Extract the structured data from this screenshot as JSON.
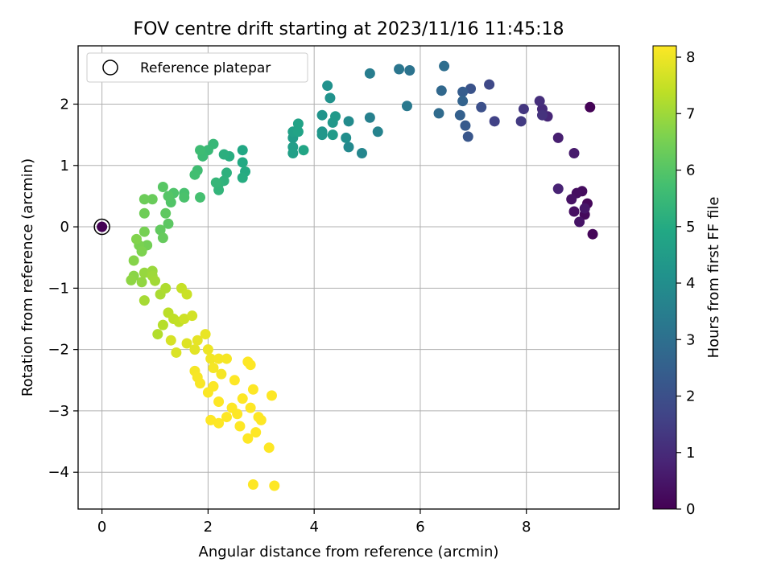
{
  "chart_data": {
    "type": "scatter",
    "title": "FOV centre drift starting at 2023/11/16 11:45:18",
    "xlabel": "Angular distance from reference (arcmin)",
    "ylabel": "Rotation from reference (arcmin)",
    "xlim": [
      -0.45,
      9.75
    ],
    "ylim": [
      -4.6,
      2.95
    ],
    "xticks": [
      0,
      2,
      4,
      6,
      8
    ],
    "yticks": [
      -4,
      -3,
      -2,
      -1,
      0,
      1,
      2
    ],
    "x_tick_labels": [
      "0",
      "2",
      "4",
      "6",
      "8"
    ],
    "y_tick_labels": [
      "−4",
      "−3",
      "−2",
      "−1",
      "0",
      "1",
      "2"
    ],
    "grid": true,
    "legend": {
      "position": "upper-left",
      "label": "Reference platepar"
    },
    "reference_point": {
      "x": 0,
      "y": 0
    },
    "colorbar": {
      "label": "Hours from first FF file",
      "colormap": "viridis",
      "min": 0,
      "max": 8.2,
      "ticks": [
        0,
        1,
        2,
        3,
        4,
        5,
        6,
        7,
        8
      ],
      "tick_labels": [
        "0",
        "1",
        "2",
        "3",
        "4",
        "5",
        "6",
        "7",
        "8"
      ]
    },
    "series": [
      {
        "points": [
          [
            0.0,
            0.0,
            0.0
          ],
          [
            9.2,
            1.95,
            0.05
          ],
          [
            9.25,
            -0.12,
            0.1
          ],
          [
            9.15,
            0.38,
            0.15
          ],
          [
            9.1,
            0.2,
            0.2
          ],
          [
            9.05,
            0.58,
            0.25
          ],
          [
            8.95,
            0.55,
            0.3
          ],
          [
            8.9,
            0.25,
            0.35
          ],
          [
            8.85,
            0.45,
            0.4
          ],
          [
            9.0,
            0.08,
            0.45
          ],
          [
            9.1,
            0.3,
            0.5
          ],
          [
            8.9,
            1.2,
            0.6
          ],
          [
            8.6,
            1.45,
            0.7
          ],
          [
            8.6,
            0.62,
            0.8
          ],
          [
            8.4,
            1.8,
            0.9
          ],
          [
            8.3,
            1.92,
            1.0
          ],
          [
            8.25,
            2.05,
            1.1
          ],
          [
            8.3,
            1.82,
            1.2
          ],
          [
            7.95,
            1.92,
            1.3
          ],
          [
            7.9,
            1.72,
            1.4
          ],
          [
            7.4,
            1.72,
            1.6
          ],
          [
            7.3,
            2.32,
            1.8
          ],
          [
            7.15,
            1.95,
            2.0
          ],
          [
            6.95,
            2.25,
            2.1
          ],
          [
            6.9,
            1.47,
            2.2
          ],
          [
            6.85,
            1.65,
            2.3
          ],
          [
            6.8,
            2.2,
            2.4
          ],
          [
            6.75,
            1.82,
            2.5
          ],
          [
            6.8,
            2.05,
            2.6
          ],
          [
            6.4,
            2.22,
            2.75
          ],
          [
            6.35,
            1.85,
            2.85
          ],
          [
            6.45,
            2.62,
            2.95
          ],
          [
            5.8,
            2.55,
            3.1
          ],
          [
            5.6,
            2.57,
            3.2
          ],
          [
            5.75,
            1.97,
            3.3
          ],
          [
            5.05,
            2.5,
            3.45
          ],
          [
            5.05,
            1.78,
            3.55
          ],
          [
            5.2,
            1.55,
            3.65
          ],
          [
            4.9,
            1.2,
            3.75
          ],
          [
            4.65,
            1.3,
            3.85
          ],
          [
            4.65,
            1.72,
            3.9
          ],
          [
            4.6,
            1.45,
            4.0
          ],
          [
            4.25,
            2.3,
            4.1
          ],
          [
            4.3,
            2.1,
            4.15
          ],
          [
            4.15,
            1.82,
            4.2
          ],
          [
            4.15,
            1.55,
            4.25
          ],
          [
            4.15,
            1.5,
            4.3
          ],
          [
            4.35,
            1.7,
            4.35
          ],
          [
            4.4,
            1.8,
            4.4
          ],
          [
            4.35,
            1.5,
            4.45
          ],
          [
            3.6,
            1.45,
            4.5
          ],
          [
            3.6,
            1.3,
            4.55
          ],
          [
            3.6,
            1.2,
            4.6
          ],
          [
            3.6,
            1.55,
            4.65
          ],
          [
            3.7,
            1.68,
            4.7
          ],
          [
            3.7,
            1.55,
            4.75
          ],
          [
            3.8,
            1.25,
            4.8
          ],
          [
            2.65,
            1.25,
            4.9
          ],
          [
            2.65,
            1.05,
            4.95
          ],
          [
            2.7,
            0.9,
            5.0
          ],
          [
            2.65,
            0.8,
            5.05
          ],
          [
            2.4,
            1.15,
            5.1
          ],
          [
            2.3,
            1.18,
            5.15
          ],
          [
            2.35,
            0.88,
            5.2
          ],
          [
            2.3,
            0.75,
            5.25
          ],
          [
            2.2,
            0.7,
            5.3
          ],
          [
            2.2,
            0.6,
            5.35
          ],
          [
            2.15,
            0.72,
            5.4
          ],
          [
            2.1,
            1.35,
            5.45
          ],
          [
            2.0,
            1.25,
            5.5
          ],
          [
            1.9,
            1.15,
            5.55
          ],
          [
            1.85,
            1.25,
            5.6
          ],
          [
            1.8,
            0.92,
            5.65
          ],
          [
            1.75,
            0.85,
            5.7
          ],
          [
            1.85,
            0.48,
            5.75
          ],
          [
            1.55,
            0.55,
            5.8
          ],
          [
            1.55,
            0.48,
            5.85
          ],
          [
            1.35,
            0.55,
            5.9
          ],
          [
            1.3,
            0.4,
            5.95
          ],
          [
            1.25,
            0.5,
            6.0
          ],
          [
            1.15,
            0.65,
            6.05
          ],
          [
            1.25,
            0.05,
            6.1
          ],
          [
            1.2,
            0.22,
            6.15
          ],
          [
            1.1,
            -0.05,
            6.2
          ],
          [
            1.15,
            -0.18,
            6.25
          ],
          [
            0.95,
            0.45,
            6.3
          ],
          [
            0.8,
            0.45,
            6.35
          ],
          [
            0.8,
            0.22,
            6.4
          ],
          [
            0.85,
            -0.3,
            6.45
          ],
          [
            0.8,
            -0.08,
            6.5
          ],
          [
            0.7,
            -0.3,
            6.55
          ],
          [
            0.75,
            -0.4,
            6.6
          ],
          [
            0.65,
            -0.2,
            6.65
          ],
          [
            0.6,
            -0.55,
            6.7
          ],
          [
            0.6,
            -0.8,
            6.75
          ],
          [
            0.55,
            -0.87,
            6.8
          ],
          [
            0.75,
            -0.9,
            6.85
          ],
          [
            0.8,
            -0.75,
            6.9
          ],
          [
            0.95,
            -0.72,
            6.95
          ],
          [
            0.95,
            -0.8,
            7.0
          ],
          [
            1.0,
            -0.88,
            7.05
          ],
          [
            0.8,
            -1.2,
            7.1
          ],
          [
            1.1,
            -1.1,
            7.15
          ],
          [
            1.2,
            -1.0,
            7.2
          ],
          [
            1.05,
            -1.75,
            7.25
          ],
          [
            1.15,
            -1.6,
            7.3
          ],
          [
            1.25,
            -1.4,
            7.35
          ],
          [
            1.35,
            -1.5,
            7.4
          ],
          [
            1.45,
            -1.55,
            7.45
          ],
          [
            1.5,
            -1.0,
            7.5
          ],
          [
            1.6,
            -1.1,
            7.55
          ],
          [
            1.55,
            -1.5,
            7.6
          ],
          [
            1.7,
            -1.45,
            7.65
          ],
          [
            1.3,
            -1.85,
            7.7
          ],
          [
            1.4,
            -2.05,
            7.75
          ],
          [
            1.6,
            -1.9,
            7.8
          ],
          [
            1.75,
            -2.0,
            7.85
          ],
          [
            1.8,
            -1.85,
            7.9
          ],
          [
            1.95,
            -1.75,
            7.95
          ],
          [
            2.0,
            -2.0,
            8.0
          ],
          [
            2.05,
            -2.15,
            8.05
          ],
          [
            1.75,
            -2.35,
            8.1
          ],
          [
            1.8,
            -2.45,
            8.12
          ],
          [
            1.85,
            -2.55,
            8.14
          ],
          [
            2.0,
            -2.7,
            8.16
          ],
          [
            2.1,
            -2.6,
            8.18
          ],
          [
            2.2,
            -2.85,
            8.2
          ],
          [
            2.05,
            -3.15,
            8.2
          ],
          [
            2.2,
            -3.2,
            8.2
          ],
          [
            2.35,
            -3.1,
            8.2
          ],
          [
            2.45,
            -2.95,
            8.2
          ],
          [
            2.5,
            -2.5,
            8.2
          ],
          [
            2.55,
            -3.05,
            8.2
          ],
          [
            2.6,
            -3.25,
            8.2
          ],
          [
            2.65,
            -2.8,
            8.2
          ],
          [
            2.75,
            -3.45,
            8.2
          ],
          [
            2.8,
            -2.95,
            8.2
          ],
          [
            2.85,
            -2.65,
            8.2
          ],
          [
            2.9,
            -3.35,
            8.2
          ],
          [
            2.95,
            -3.1,
            8.2
          ],
          [
            3.0,
            -3.15,
            8.2
          ],
          [
            2.75,
            -2.2,
            8.2
          ],
          [
            2.8,
            -2.25,
            8.2
          ],
          [
            3.2,
            -2.75,
            8.2
          ],
          [
            3.15,
            -3.6,
            8.2
          ],
          [
            2.85,
            -4.2,
            8.2
          ],
          [
            3.25,
            -4.22,
            8.2
          ],
          [
            2.35,
            -2.15,
            8.1
          ],
          [
            2.25,
            -2.4,
            8.1
          ],
          [
            2.1,
            -2.3,
            8.1
          ],
          [
            2.2,
            -2.15,
            8.1
          ]
        ]
      }
    ]
  }
}
